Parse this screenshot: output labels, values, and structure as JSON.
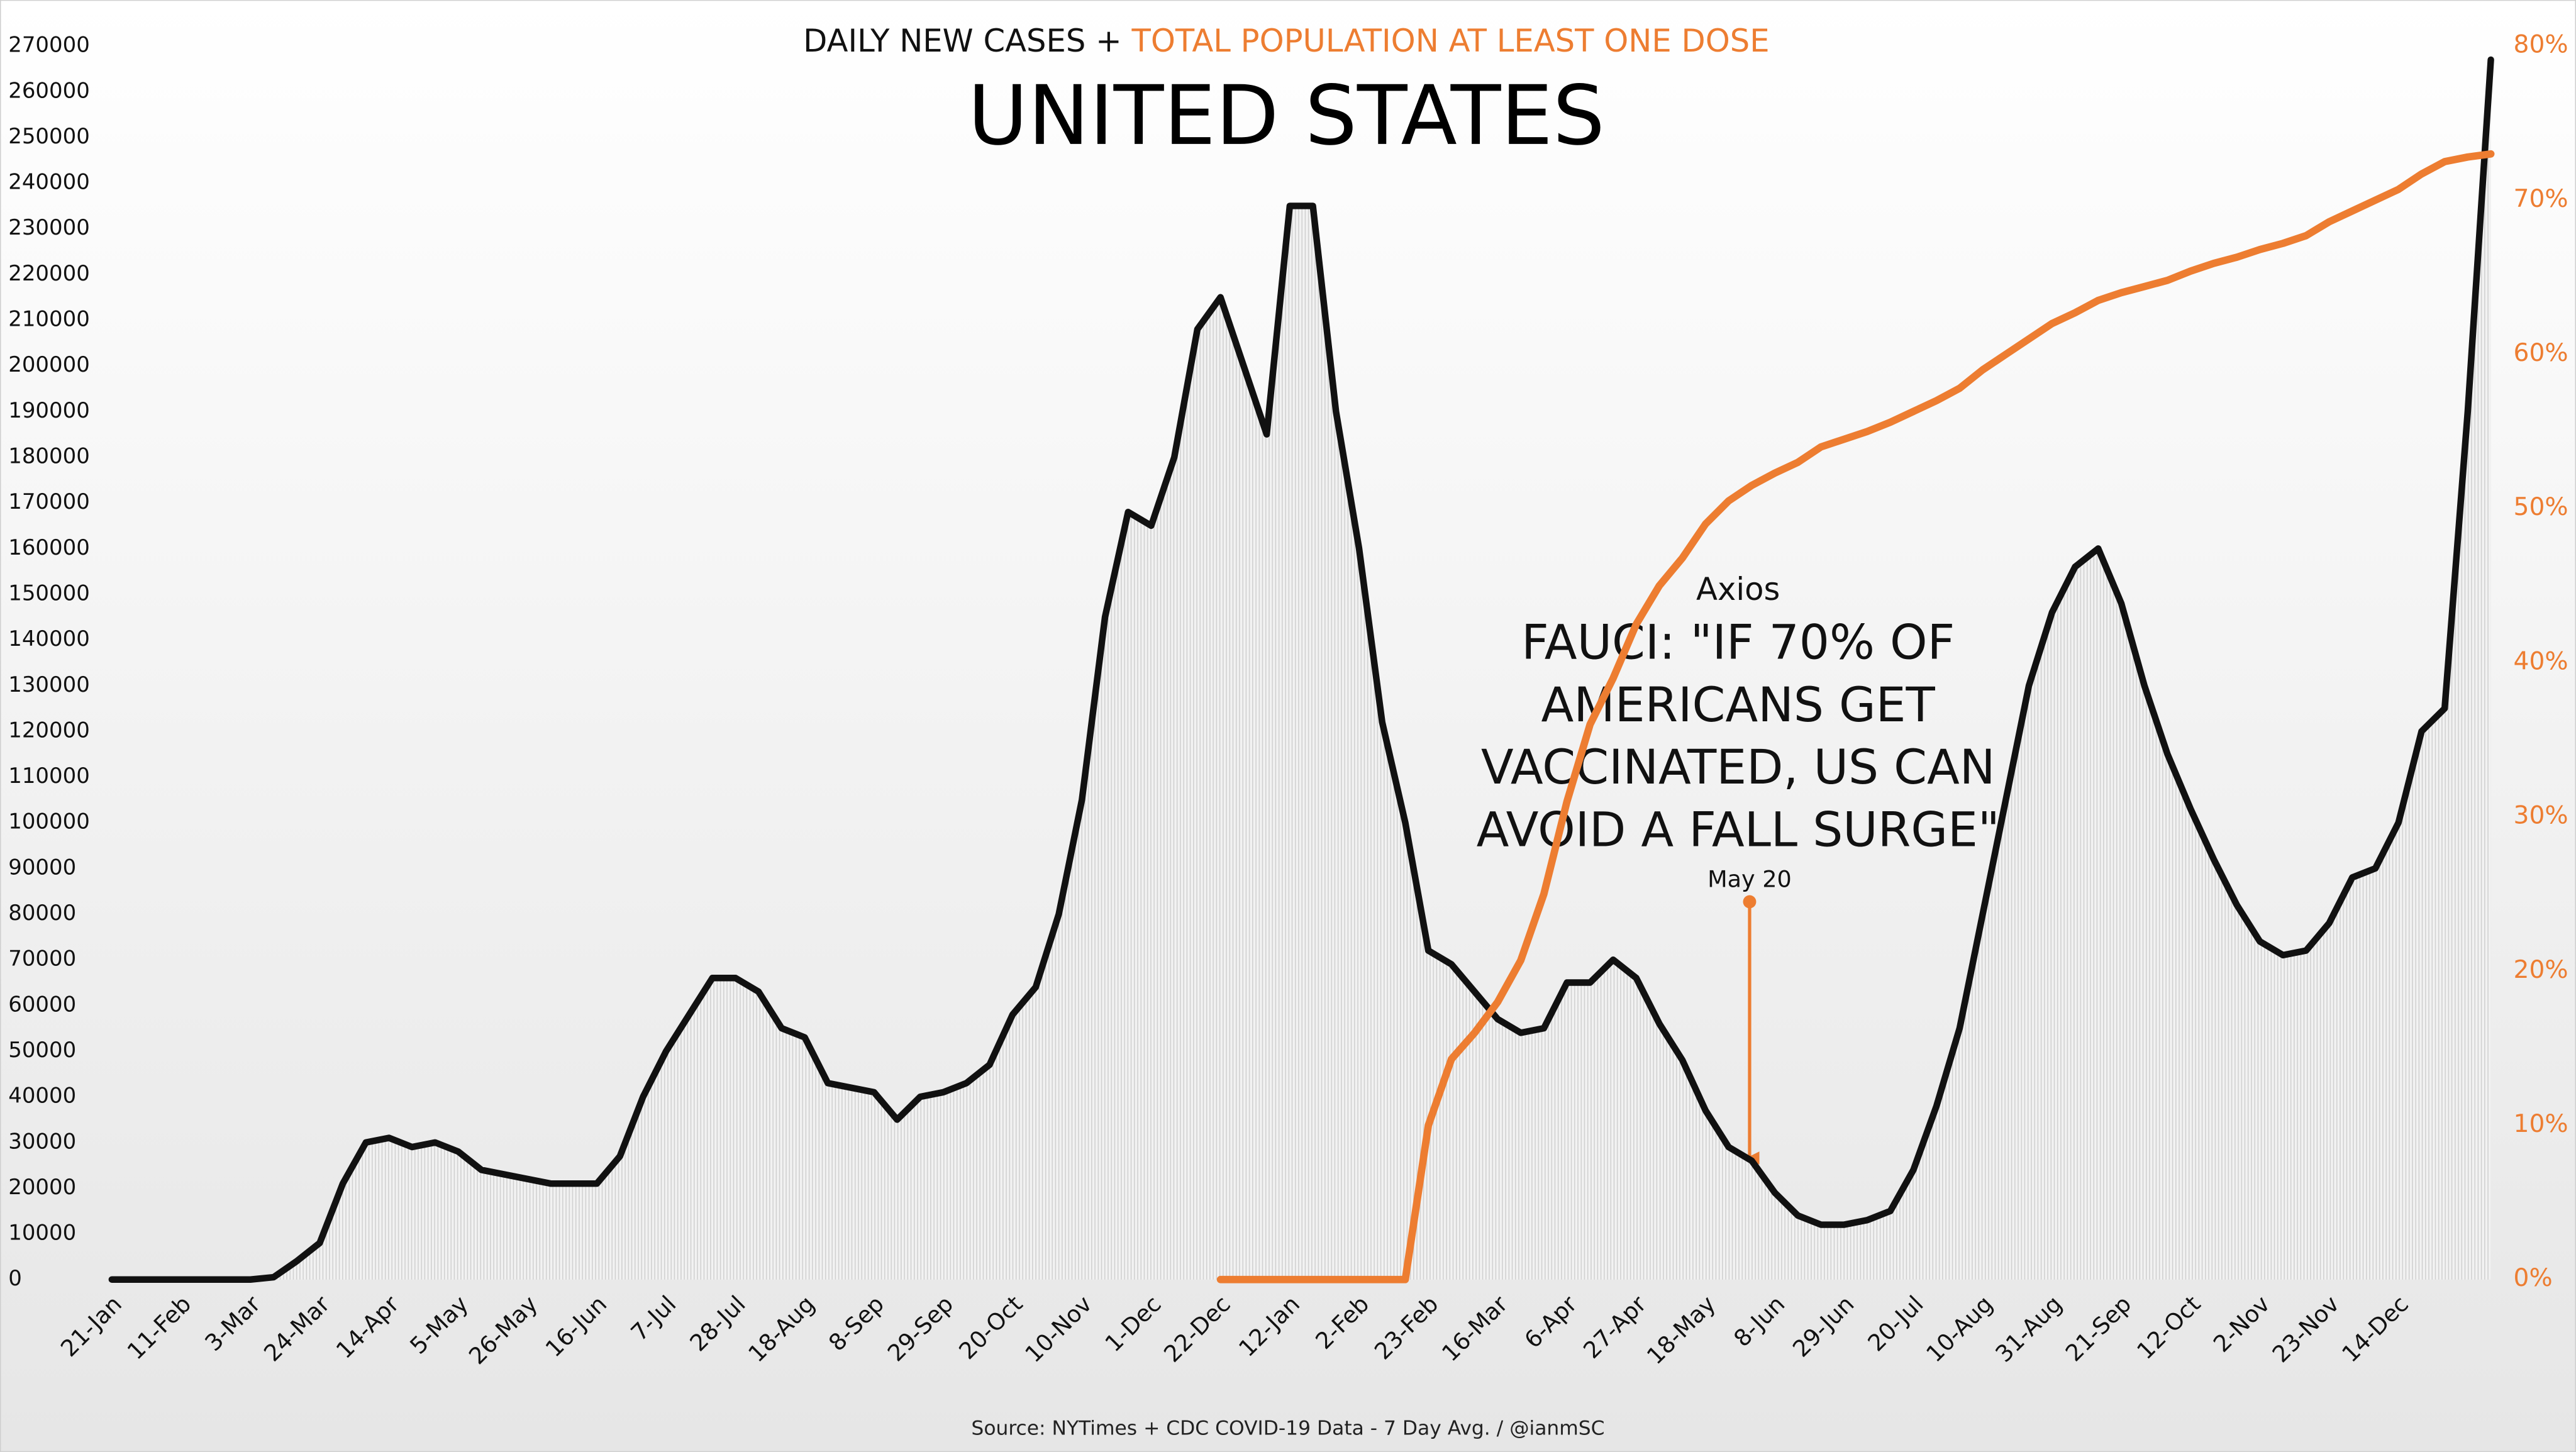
{
  "chart_data": {
    "type": "line",
    "title": "UNITED STATES",
    "legend_separator": "+",
    "source": "Source: NYTimes + CDC COVID-19 Data - 7 Day Avg. / @ianmSC",
    "annotation": {
      "source": "Axios",
      "lines": [
        "FAUCI: \"IF 70% OF",
        "AMERICANS GET",
        "VACCINATED, US CAN",
        "AVOID A FALL SURGE\""
      ],
      "date": "May 20"
    },
    "categories": [
      "21-Jan",
      null,
      null,
      "11-Feb",
      null,
      null,
      "3-Mar",
      null,
      null,
      "24-Mar",
      null,
      null,
      "14-Apr",
      null,
      null,
      "5-May",
      null,
      null,
      "26-May",
      null,
      null,
      "16-Jun",
      null,
      null,
      "7-Jul",
      null,
      null,
      "28-Jul",
      null,
      null,
      "18-Aug",
      null,
      null,
      "8-Sep",
      null,
      null,
      "29-Sep",
      null,
      null,
      "20-Oct",
      null,
      null,
      "10-Nov",
      null,
      null,
      "1-Dec",
      null,
      null,
      "22-Dec",
      null,
      null,
      "12-Jan",
      null,
      null,
      "2-Feb",
      null,
      null,
      "23-Feb",
      null,
      null,
      "16-Mar",
      null,
      null,
      "6-Apr",
      null,
      null,
      "27-Apr",
      null,
      null,
      "18-May",
      null,
      null,
      "8-Jun",
      null,
      null,
      "29-Jun",
      null,
      null,
      "20-Jul",
      null,
      null,
      "10-Aug",
      null,
      null,
      "31-Aug",
      null,
      null,
      "21-Sep",
      null,
      null,
      "12-Oct",
      null,
      null,
      "2-Nov",
      null,
      null,
      "23-Nov",
      null,
      null,
      "14-Dec",
      null,
      null,
      null,
      null
    ],
    "series": [
      {
        "name": "DAILY NEW CASES",
        "color": "#111111",
        "axis": "y",
        "values": [
          0,
          0,
          0,
          0,
          0,
          0,
          0,
          500,
          4000,
          8000,
          21000,
          30000,
          31000,
          29000,
          30000,
          28000,
          24000,
          23000,
          22000,
          21000,
          21000,
          21000,
          27000,
          40000,
          50000,
          58000,
          66000,
          66000,
          63000,
          55000,
          53000,
          43000,
          42000,
          41000,
          35000,
          40000,
          41000,
          43000,
          47000,
          58000,
          64000,
          80000,
          105000,
          145000,
          168000,
          165000,
          180000,
          208000,
          215000,
          200000,
          185000,
          235000,
          235000,
          190000,
          160000,
          122000,
          100000,
          72000,
          69000,
          63000,
          57000,
          54000,
          55000,
          65000,
          65000,
          70000,
          66000,
          56000,
          48000,
          37000,
          29000,
          26000,
          19000,
          14000,
          12000,
          12000,
          13000,
          15000,
          24000,
          38000,
          55000,
          80000,
          105000,
          130000,
          146000,
          156000,
          160000,
          148000,
          130000,
          115000,
          103000,
          92000,
          82000,
          74000,
          71000,
          72000,
          78000,
          88000,
          90000,
          100000,
          120000,
          125000,
          190000,
          267000
        ]
      },
      {
        "name": "TOTAL POPULATION AT LEAST ONE DOSE",
        "color": "#ed7d31",
        "axis": "y2",
        "values": [
          null,
          null,
          null,
          null,
          null,
          null,
          null,
          null,
          null,
          null,
          null,
          null,
          null,
          null,
          null,
          null,
          null,
          null,
          null,
          null,
          null,
          null,
          null,
          null,
          null,
          null,
          null,
          null,
          null,
          null,
          null,
          null,
          null,
          null,
          null,
          null,
          null,
          null,
          null,
          null,
          null,
          null,
          null,
          null,
          null,
          null,
          null,
          null,
          0,
          0,
          0,
          0,
          0,
          0,
          0,
          0,
          0,
          10,
          14.3,
          16,
          18,
          20.7,
          25,
          31,
          36,
          39,
          42.5,
          45,
          46.8,
          49,
          50.5,
          51.5,
          52.3,
          53,
          54,
          54.5,
          55,
          55.6,
          56.3,
          57,
          57.8,
          59,
          60,
          61,
          62,
          62.7,
          63.5,
          64,
          64.4,
          64.8,
          65.4,
          65.9,
          66.3,
          66.8,
          67.2,
          67.7,
          68.6,
          69.3,
          70,
          70.7,
          71.7,
          72.5,
          72.8,
          73
        ]
      }
    ],
    "ylim": [
      0,
      270000
    ],
    "yticks": [
      0,
      10000,
      20000,
      30000,
      40000,
      50000,
      60000,
      70000,
      80000,
      90000,
      100000,
      110000,
      120000,
      130000,
      140000,
      150000,
      160000,
      170000,
      180000,
      190000,
      200000,
      210000,
      220000,
      230000,
      240000,
      250000,
      260000,
      270000
    ],
    "y2lim": [
      0,
      80
    ],
    "y2ticks": [
      {
        "value": 0,
        "label": "0%"
      },
      {
        "value": 10,
        "label": "10%"
      },
      {
        "value": 20,
        "label": "20%"
      },
      {
        "value": 30,
        "label": "30%"
      },
      {
        "value": 40,
        "label": "40%"
      },
      {
        "value": 50,
        "label": "50%"
      },
      {
        "value": 60,
        "label": "60%"
      },
      {
        "value": 70,
        "label": "70%"
      },
      {
        "value": 80,
        "label": "80%"
      }
    ]
  }
}
